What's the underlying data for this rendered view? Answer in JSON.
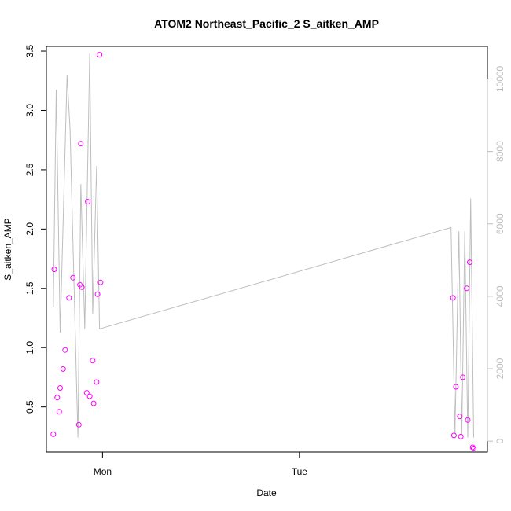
{
  "chart_data": {
    "type": "scatter",
    "title": "ATOM2 Northeast_Pacific_2 S_aitken_AMP",
    "xlabel": "Date",
    "ylabel": "S_aitken_AMP",
    "x_ticks": [
      "Mon",
      "Tue"
    ],
    "y_ticks": [
      "0.5",
      "1.0",
      "1.5",
      "2.0",
      "2.5",
      "3.0",
      "3.5"
    ],
    "y2_ticks": [
      "0",
      "2000",
      "4000",
      "6000",
      "8000",
      "10000"
    ],
    "xlim": [
      -0.285,
      1.955
    ],
    "ylim": [
      0.12,
      3.54
    ],
    "y2lim": [
      -300,
      10900
    ],
    "point_color": "#ff00ff",
    "line_color": "#bebebe",
    "series": [
      {
        "values": [
          {
            "x": -0.25,
            "y": 0.27
          },
          {
            "x": -0.245,
            "y": 1.66
          },
          {
            "x": -0.23,
            "y": 0.58
          },
          {
            "x": -0.22,
            "y": 0.46
          },
          {
            "x": -0.215,
            "y": 0.66
          },
          {
            "x": -0.2,
            "y": 0.82
          },
          {
            "x": -0.19,
            "y": 0.98
          },
          {
            "x": -0.17,
            "y": 1.42
          },
          {
            "x": -0.15,
            "y": 1.59
          },
          {
            "x": -0.12,
            "y": 0.35
          },
          {
            "x": -0.115,
            "y": 1.53
          },
          {
            "x": -0.11,
            "y": 2.72
          },
          {
            "x": -0.105,
            "y": 1.51
          },
          {
            "x": -0.08,
            "y": 0.62
          },
          {
            "x": -0.075,
            "y": 2.23
          },
          {
            "x": -0.065,
            "y": 0.59
          },
          {
            "x": -0.05,
            "y": 0.89
          },
          {
            "x": -0.045,
            "y": 0.53
          },
          {
            "x": -0.03,
            "y": 0.71
          },
          {
            "x": -0.025,
            "y": 1.45
          },
          {
            "x": -0.015,
            "y": 3.47
          },
          {
            "x": -0.01,
            "y": 1.55
          },
          {
            "x": 1.78,
            "y": 1.42
          },
          {
            "x": 1.785,
            "y": 0.26
          },
          {
            "x": 1.795,
            "y": 0.67
          },
          {
            "x": 1.815,
            "y": 0.42
          },
          {
            "x": 1.82,
            "y": 0.25
          },
          {
            "x": 1.83,
            "y": 0.75
          },
          {
            "x": 1.85,
            "y": 1.5
          },
          {
            "x": 1.855,
            "y": 0.39
          },
          {
            "x": 1.865,
            "y": 1.72
          },
          {
            "x": 1.88,
            "y": 0.16
          },
          {
            "x": 1.885,
            "y": 0.15
          }
        ]
      },
      {
        "axis": "right",
        "values": [
          {
            "x": -0.25,
            "y": 3700
          },
          {
            "x": -0.235,
            "y": 9700
          },
          {
            "x": -0.215,
            "y": 3000
          },
          {
            "x": -0.18,
            "y": 10100
          },
          {
            "x": -0.165,
            "y": 8600
          },
          {
            "x": -0.125,
            "y": 100
          },
          {
            "x": -0.11,
            "y": 7100
          },
          {
            "x": -0.09,
            "y": 3100
          },
          {
            "x": -0.065,
            "y": 10700
          },
          {
            "x": -0.05,
            "y": 3500
          },
          {
            "x": -0.03,
            "y": 7600
          },
          {
            "x": -0.015,
            "y": 3100
          },
          {
            "x": 1.77,
            "y": 5900
          },
          {
            "x": 1.79,
            "y": 200
          },
          {
            "x": 1.81,
            "y": 5800
          },
          {
            "x": 1.825,
            "y": 200
          },
          {
            "x": 1.84,
            "y": 5800
          },
          {
            "x": 1.855,
            "y": 100
          },
          {
            "x": 1.87,
            "y": 6700
          },
          {
            "x": 1.885,
            "y": 100
          }
        ]
      }
    ]
  }
}
